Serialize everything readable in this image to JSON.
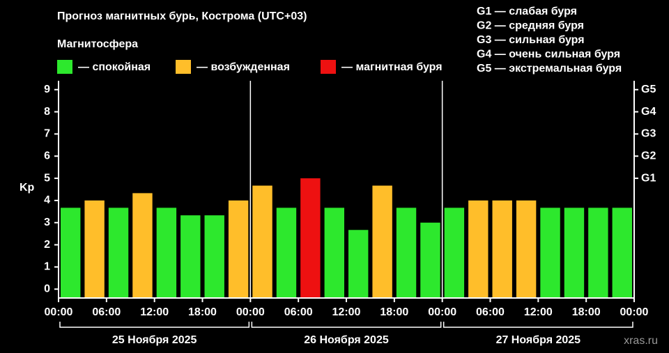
{
  "chart_data": {
    "type": "bar",
    "title": "Прогноз магнитных бурь, Кострома (UTC+03)",
    "subtitle": "Магнитосфера",
    "legend": [
      {
        "label": "— спокойная",
        "color": "#2de82d"
      },
      {
        "label": "— возбужденная",
        "color": "#ffbe2a"
      },
      {
        "label": "— магнитная буря",
        "color": "#ee1111"
      }
    ],
    "scale_notes": [
      "G1 — слабая буря",
      "G2 — средняя буря",
      "G3 — сильная буря",
      "G4 — очень сильная буря",
      "G5 — экстремальная буря"
    ],
    "ylabel": "Kp",
    "values": [
      3.67,
      4,
      3.67,
      4.33,
      3.67,
      3.33,
      3.33,
      4,
      4.67,
      3.67,
      5,
      3.67,
      2.67,
      4.67,
      3.67,
      3,
      3.67,
      4,
      4,
      4,
      3.67,
      3.67,
      3.67,
      3.67
    ],
    "colors": [
      "#2de82d",
      "#ffbe2a",
      "#2de82d",
      "#ffbe2a",
      "#2de82d",
      "#2de82d",
      "#2de82d",
      "#ffbe2a",
      "#ffbe2a",
      "#2de82d",
      "#ee1111",
      "#2de82d",
      "#2de82d",
      "#ffbe2a",
      "#2de82d",
      "#2de82d",
      "#2de82d",
      "#ffbe2a",
      "#ffbe2a",
      "#ffbe2a",
      "#2de82d",
      "#2de82d",
      "#2de82d",
      "#2de82d"
    ],
    "xticks": [
      "00:00",
      "06:00",
      "12:00",
      "18:00",
      "00:00",
      "06:00",
      "12:00",
      "18:00",
      "00:00",
      "06:00",
      "12:00",
      "18:00",
      "00:00"
    ],
    "days": [
      "25 Ноября 2025",
      "26 Ноября 2025",
      "27 Ноября 2025"
    ],
    "ylim": [
      -0.4,
      9.4
    ],
    "yticks": [
      0,
      1,
      2,
      3,
      4,
      5,
      6,
      7,
      8,
      9
    ],
    "y2lim": [
      -0.4,
      9.4
    ],
    "y2ticks": [
      {
        "value": 5,
        "label": "G1"
      },
      {
        "value": 6,
        "label": "G2"
      },
      {
        "value": 7,
        "label": "G3"
      },
      {
        "value": 8,
        "label": "G4"
      },
      {
        "value": 9,
        "label": "G5"
      }
    ],
    "watermark": "xras.ru"
  }
}
